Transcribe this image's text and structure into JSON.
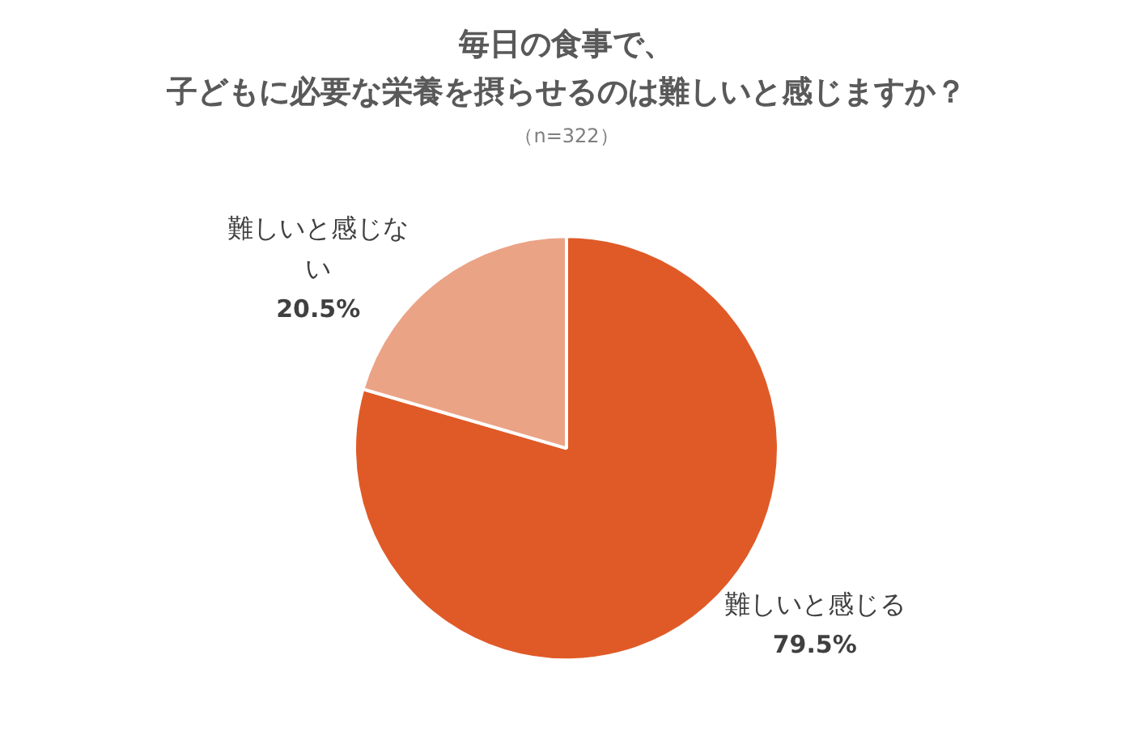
{
  "chart_data": {
    "type": "pie",
    "title": "毎日の食事で、子どもに必要な栄養を摂らせるのは難しいと感じますか？",
    "subtitle": "（n=322）",
    "categories": [
      "難しいと感じる",
      "難しいと感じない"
    ],
    "values": [
      79.5,
      20.5
    ],
    "colors": [
      "#e05a27",
      "#eba386"
    ],
    "value_labels": [
      "79.5%",
      "20.5%"
    ]
  }
}
